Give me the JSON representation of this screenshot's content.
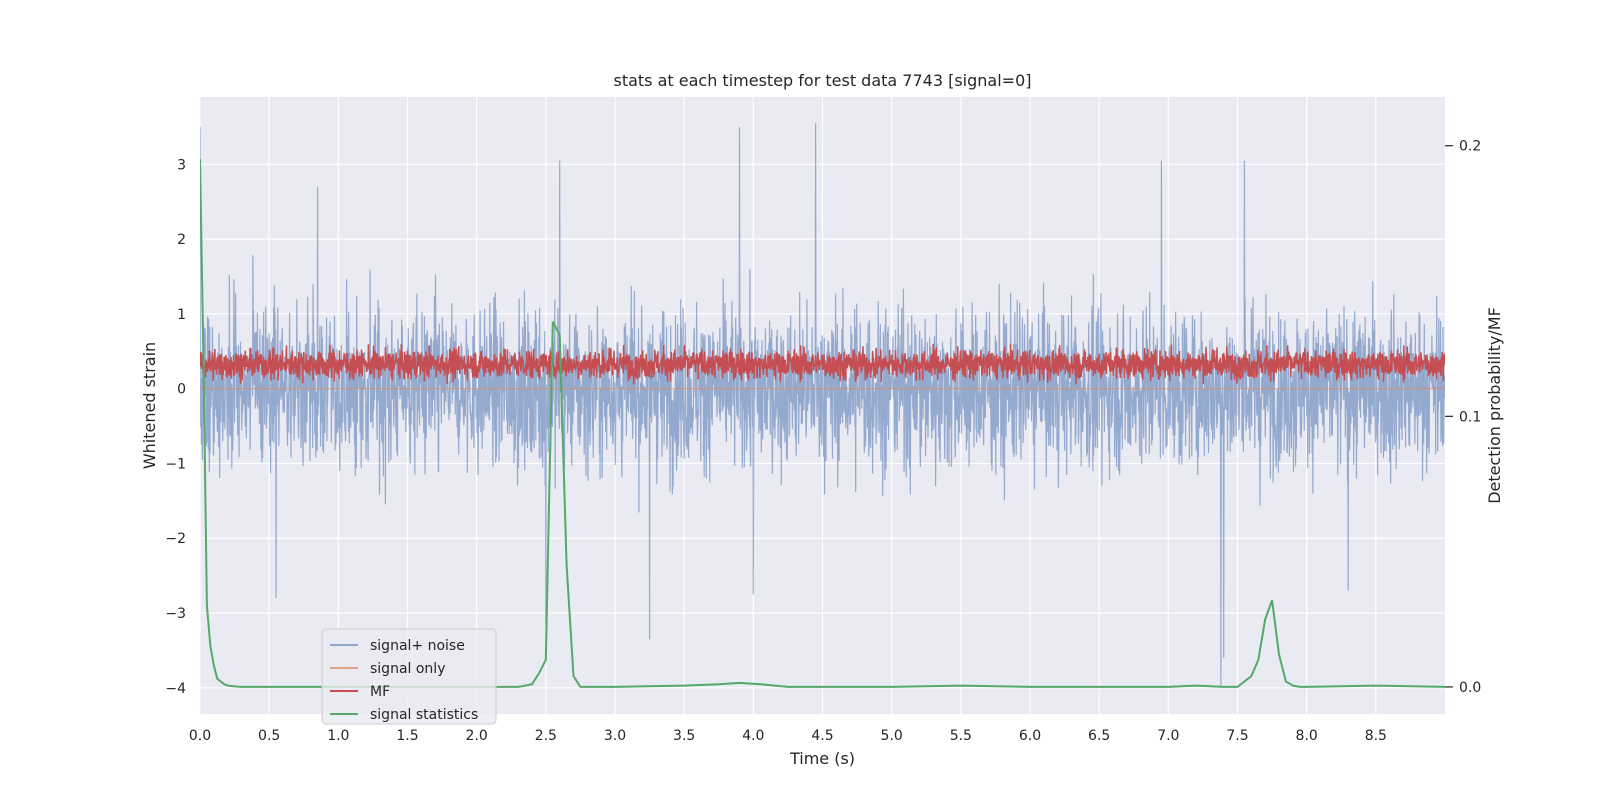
{
  "chart_data": {
    "type": "line",
    "title": "stats at each timestep for test data 7743 [signal=0]",
    "xlabel": "Time (s)",
    "ylabel_left": "Whitened strain",
    "ylabel_right": "Detection probability/MF",
    "xlim": [
      0.0,
      9.0
    ],
    "ylim_left": [
      -4.35,
      3.9
    ],
    "ylim_right": [
      -0.01,
      0.218
    ],
    "x_ticks": [
      "0.0",
      "0.5",
      "1.0",
      "1.5",
      "2.0",
      "2.5",
      "3.0",
      "3.5",
      "4.0",
      "4.5",
      "5.0",
      "5.5",
      "6.0",
      "6.5",
      "7.0",
      "7.5",
      "8.0",
      "8.5"
    ],
    "y_ticks_left": [
      "−4",
      "−3",
      "−2",
      "−1",
      "0",
      "1",
      "2",
      "3"
    ],
    "y_ticks_right": [
      "0.0",
      "0.1",
      "0.2"
    ],
    "grid": true,
    "legend_position": "lower-left",
    "colors": {
      "background": "#eaeaf2",
      "grid": "#ffffff",
      "signal_noise": "#4c72b0",
      "signal_only": "#dd8452",
      "mf": "#c44e52",
      "stats": "#55a868"
    },
    "series": [
      {
        "name": "signal+ noise",
        "axis": "left",
        "note_envelope": "dense noise, roughly within −2 to 2",
        "peaks": [
          {
            "x": 0.0,
            "y": 3.5
          },
          {
            "x": 0.85,
            "y": 2.7
          },
          {
            "x": 2.6,
            "y": 3.05
          },
          {
            "x": 3.9,
            "y": 3.5
          },
          {
            "x": 4.45,
            "y": 3.55
          },
          {
            "x": 6.95,
            "y": 3.05
          },
          {
            "x": 7.55,
            "y": 3.05
          }
        ],
        "troughs": [
          {
            "x": 0.55,
            "y": -2.8
          },
          {
            "x": 2.5,
            "y": -3.15
          },
          {
            "x": 3.25,
            "y": -3.35
          },
          {
            "x": 4.0,
            "y": -2.75
          },
          {
            "x": 7.38,
            "y": -4.0
          },
          {
            "x": 7.4,
            "y": -3.6
          },
          {
            "x": 8.3,
            "y": -2.7
          }
        ]
      },
      {
        "name": "signal only",
        "axis": "left",
        "x": [
          0.0,
          9.0
        ],
        "y": [
          0.0,
          0.0
        ]
      },
      {
        "name": "MF",
        "axis": "left",
        "note_envelope": "dense noise, roughly within 0.05 to 0.9",
        "y_center": 0.33
      },
      {
        "name": "signal statistics",
        "axis": "right",
        "x": [
          0.0,
          0.025,
          0.05,
          0.075,
          0.1,
          0.125,
          0.15,
          0.175,
          0.2,
          0.25,
          0.3,
          0.4,
          0.5,
          0.75,
          1.0,
          1.25,
          1.5,
          1.75,
          2.0,
          2.2,
          2.3,
          2.35,
          2.4,
          2.45,
          2.5,
          2.55,
          2.6,
          2.65,
          2.7,
          2.75,
          2.8,
          3.0,
          3.5,
          3.75,
          3.9,
          4.05,
          4.25,
          4.5,
          5.0,
          5.5,
          6.0,
          6.5,
          7.0,
          7.2,
          7.4,
          7.5,
          7.55,
          7.6,
          7.65,
          7.7,
          7.75,
          7.8,
          7.85,
          7.9,
          7.95,
          8.0,
          8.5,
          9.0
        ],
        "y": [
          0.195,
          0.12,
          0.03,
          0.015,
          0.008,
          0.003,
          0.002,
          0.001,
          0.0005,
          0.0002,
          0.0,
          0.0,
          0.0,
          0.0,
          0.0,
          0.0,
          0.0,
          0.0,
          0.0,
          0.0,
          0.0,
          0.0005,
          0.001,
          0.005,
          0.01,
          0.135,
          0.13,
          0.045,
          0.004,
          0.0,
          0.0,
          0.0,
          0.0005,
          0.001,
          0.0015,
          0.001,
          0.0,
          0.0,
          0.0,
          0.0005,
          0.0,
          0.0,
          0.0,
          0.0005,
          0.0,
          0.0,
          0.002,
          0.004,
          0.01,
          0.025,
          0.032,
          0.012,
          0.002,
          0.0005,
          0.0,
          0.0,
          0.0005,
          0.0
        ]
      }
    ]
  }
}
